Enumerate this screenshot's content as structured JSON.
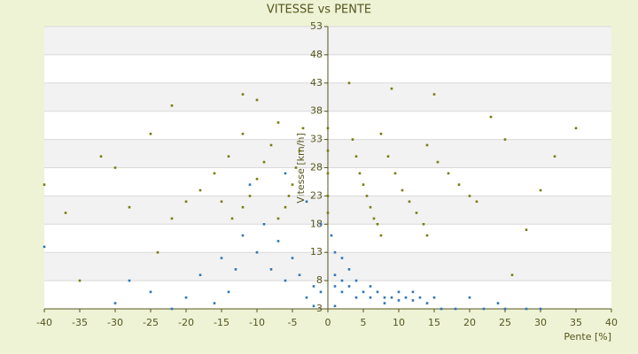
{
  "chart_data": {
    "type": "scatter",
    "title": "VITESSE vs PENTE",
    "x_label": "Pente [%]",
    "y_label": "Vitesse [km/h]",
    "xlim": [
      -40,
      40
    ],
    "xticks": [
      -40,
      -35,
      -30,
      -25,
      -20,
      -15,
      -10,
      -5,
      0,
      5,
      10,
      15,
      20,
      25,
      30,
      35,
      40
    ],
    "ylim": [
      3,
      53
    ],
    "yticks": [
      3,
      8,
      13,
      18,
      23,
      28,
      33,
      38,
      43,
      48,
      53
    ],
    "grid": true,
    "series": [
      {
        "color": "#7a7a10",
        "x": [
          3.5,
          4,
          4.5,
          5,
          5.5,
          6,
          6.5,
          7,
          7.5,
          7.5,
          8.5,
          9.5,
          10.5,
          11.5,
          12.5,
          13.5,
          14,
          14,
          15.5,
          17,
          18.5,
          20,
          21,
          -3.5,
          -4,
          -4.5,
          -5,
          -5.5,
          -6,
          -7,
          -7,
          -8,
          -9,
          -10,
          -11,
          -12,
          -13.5,
          -12,
          -14,
          -16,
          -18,
          -20,
          -22,
          -40,
          -37,
          -32,
          -25,
          -22,
          -12,
          -10,
          3,
          9,
          15,
          23,
          25,
          30,
          35,
          32,
          -30,
          -28,
          -15,
          0,
          0,
          0,
          0,
          0,
          -35,
          -24,
          28,
          26
        ],
        "values": [
          33,
          30,
          27,
          25,
          23,
          21,
          19,
          18,
          16,
          34,
          30,
          27,
          24,
          22,
          20,
          18,
          16,
          32,
          29,
          27,
          25,
          23,
          22,
          35,
          31,
          28,
          25,
          23,
          21,
          19,
          36,
          32,
          29,
          26,
          23,
          21,
          19,
          34,
          30,
          27,
          24,
          22,
          19,
          25,
          20,
          30,
          34,
          39,
          41,
          40,
          43,
          42,
          41,
          37,
          33,
          24,
          35,
          30,
          28,
          21,
          22,
          35,
          31,
          27,
          23,
          20,
          8,
          13,
          17,
          9
        ]
      },
      {
        "color": "#2e75b6",
        "x": [
          1,
          2,
          3,
          4,
          5,
          6,
          7,
          8,
          9,
          10,
          11,
          12,
          13,
          14,
          15,
          1,
          2,
          3,
          1,
          0.5,
          2,
          4,
          6,
          8,
          10,
          12,
          16,
          18,
          22,
          25,
          28,
          30,
          20,
          24,
          -1,
          -2,
          -3,
          -4,
          -5,
          -6,
          -7,
          -8,
          -9,
          -10,
          -11,
          -12,
          -13,
          -14,
          -15,
          -16,
          -18,
          -20,
          -22,
          -25,
          -28,
          -30,
          -40,
          -6,
          -3,
          -1,
          -2,
          1
        ],
        "values": [
          7,
          6,
          7,
          5,
          6,
          5,
          6,
          5,
          5,
          4.5,
          5,
          4.5,
          5,
          4,
          5,
          9,
          8,
          10,
          13,
          16,
          12,
          8,
          7,
          4,
          6,
          6,
          3,
          3,
          3,
          3,
          3,
          3,
          5,
          4,
          6,
          7,
          5,
          9,
          12,
          8,
          15,
          10,
          18,
          13,
          25,
          16,
          10,
          6,
          12,
          4,
          9,
          5,
          3,
          6,
          8,
          4,
          14,
          27,
          22,
          18,
          3.5,
          3.5
        ]
      }
    ]
  }
}
